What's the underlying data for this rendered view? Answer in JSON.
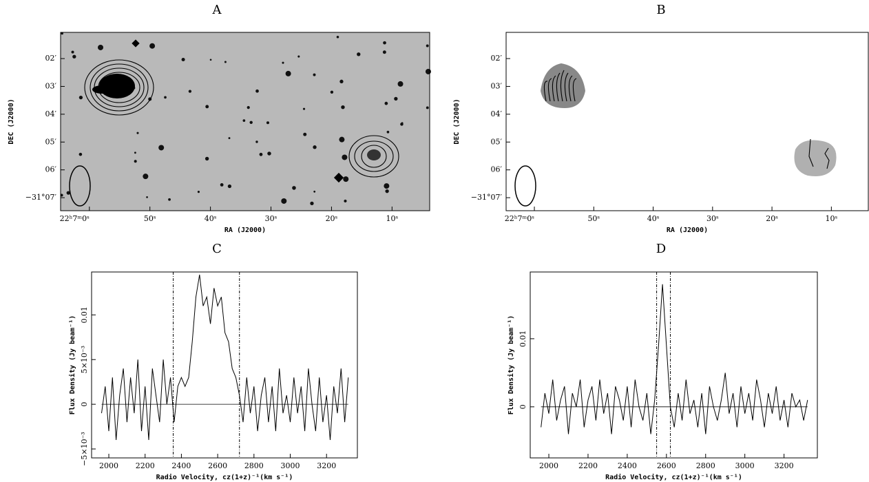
{
  "chart_data": [
    {
      "type": "image",
      "title": "A",
      "xlabel": "RA (J2000)",
      "ylabel": "DEC (J2000)",
      "grayscale_background": true,
      "xtick_labels": [
        "22ʰ7ᵐ0ˢ",
        "50ˢ",
        "40ˢ",
        "30ˢ",
        "20ˢ",
        "10ˢ"
      ],
      "ytick_labels": [
        "02′",
        "03′",
        "04′",
        "05′",
        "06′",
        "−31°07′"
      ]
    },
    {
      "type": "image",
      "title": "B",
      "xlabel": "RA (J2000)",
      "ylabel": "DEC (J2000)",
      "grayscale_background": false,
      "xtick_labels": [
        "22ʰ7ᵐ0ˢ",
        "50ˢ",
        "40ˢ",
        "30ˢ",
        "20ˢ",
        "10ˢ"
      ],
      "ytick_labels": [
        "02′",
        "03′",
        "04′",
        "05′",
        "06′",
        "−31°07′"
      ]
    },
    {
      "type": "line",
      "title": "C",
      "xlabel": "Radio Velocity, cz(1+z)⁻¹(km s⁻¹)",
      "ylabel": "Flux Density (Jy beam⁻¹)",
      "x": [
        1960,
        1980,
        2000,
        2020,
        2040,
        2060,
        2080,
        2100,
        2120,
        2140,
        2160,
        2180,
        2200,
        2220,
        2240,
        2260,
        2280,
        2300,
        2320,
        2340,
        2360,
        2380,
        2400,
        2420,
        2440,
        2460,
        2480,
        2500,
        2520,
        2540,
        2560,
        2580,
        2600,
        2620,
        2640,
        2660,
        2680,
        2700,
        2720,
        2740,
        2760,
        2780,
        2800,
        2820,
        2840,
        2860,
        2880,
        2900,
        2920,
        2940,
        2960,
        2980,
        3000,
        3020,
        3040,
        3060,
        3080,
        3100,
        3120,
        3140,
        3160,
        3180,
        3200,
        3220,
        3240,
        3260,
        3280,
        3300,
        3320
      ],
      "values": [
        -0.001,
        0.002,
        -0.003,
        0.003,
        -0.004,
        0.001,
        0.004,
        -0.002,
        0.003,
        -0.001,
        0.005,
        -0.003,
        0.002,
        -0.004,
        0.004,
        0.001,
        -0.002,
        0.005,
        0.0,
        0.003,
        -0.002,
        0.002,
        0.003,
        0.002,
        0.003,
        0.007,
        0.012,
        0.0145,
        0.011,
        0.012,
        0.009,
        0.013,
        0.011,
        0.012,
        0.008,
        0.007,
        0.004,
        0.003,
        0.001,
        -0.002,
        0.003,
        -0.001,
        0.002,
        -0.003,
        0.001,
        0.003,
        -0.002,
        0.002,
        -0.003,
        0.004,
        -0.001,
        0.001,
        -0.002,
        0.003,
        -0.001,
        0.002,
        -0.003,
        0.004,
        0.0,
        -0.003,
        0.003,
        -0.002,
        0.001,
        -0.004,
        0.002,
        -0.001,
        0.004,
        -0.002,
        0.003
      ],
      "color": "#000000",
      "vlines": [
        2355,
        2720
      ],
      "zero_line": true,
      "xlim": [
        1905,
        3370
      ],
      "xticks": [
        2000,
        2200,
        2400,
        2600,
        2800,
        3000,
        3200
      ],
      "ylim": [
        -0.006,
        0.0148
      ],
      "yticks": [
        {
          "value": -0.005,
          "label": "−5×10⁻³"
        },
        0,
        {
          "value": 0.005,
          "label": "5×10⁻³"
        },
        0.01
      ]
    },
    {
      "type": "line",
      "title": "D",
      "xlabel": "Radio Velocity, cz(1+z)⁻¹(km s⁻¹)",
      "ylabel": "Flux Density (Jy beam⁻¹)",
      "x": [
        1960,
        1980,
        2000,
        2020,
        2040,
        2060,
        2080,
        2100,
        2120,
        2140,
        2160,
        2180,
        2200,
        2220,
        2240,
        2260,
        2280,
        2300,
        2320,
        2340,
        2360,
        2380,
        2400,
        2420,
        2440,
        2460,
        2480,
        2500,
        2520,
        2540,
        2560,
        2580,
        2600,
        2620,
        2640,
        2660,
        2680,
        2700,
        2720,
        2740,
        2760,
        2780,
        2800,
        2820,
        2840,
        2860,
        2880,
        2900,
        2920,
        2940,
        2960,
        2980,
        3000,
        3020,
        3040,
        3060,
        3080,
        3100,
        3120,
        3140,
        3160,
        3180,
        3200,
        3220,
        3240,
        3260,
        3280,
        3300,
        3320
      ],
      "values": [
        -0.003,
        0.002,
        -0.001,
        0.004,
        -0.002,
        0.001,
        0.003,
        -0.004,
        0.002,
        0.0,
        0.004,
        -0.003,
        0.001,
        0.003,
        -0.002,
        0.004,
        -0.001,
        0.002,
        -0.004,
        0.003,
        0.001,
        -0.002,
        0.003,
        -0.003,
        0.004,
        0.0,
        -0.002,
        0.002,
        -0.004,
        0.001,
        0.009,
        0.018,
        0.009,
        0.0,
        -0.003,
        0.002,
        -0.002,
        0.004,
        -0.001,
        0.001,
        -0.003,
        0.002,
        -0.004,
        0.003,
        0.0,
        -0.002,
        0.001,
        0.005,
        -0.001,
        0.002,
        -0.003,
        0.003,
        -0.001,
        0.002,
        -0.002,
        0.004,
        0.001,
        -0.003,
        0.002,
        -0.001,
        0.003,
        -0.002,
        0.001,
        -0.003,
        0.002,
        0.0,
        0.001,
        -0.002,
        0.001
      ],
      "color": "#000000",
      "vlines": [
        2550,
        2620
      ],
      "zero_line": true,
      "xlim": [
        1905,
        3370
      ],
      "xticks": [
        2000,
        2200,
        2400,
        2600,
        2800,
        3000,
        3200
      ],
      "ylim": [
        -0.0075,
        0.0198
      ],
      "yticks": [
        0,
        0.01
      ]
    }
  ]
}
